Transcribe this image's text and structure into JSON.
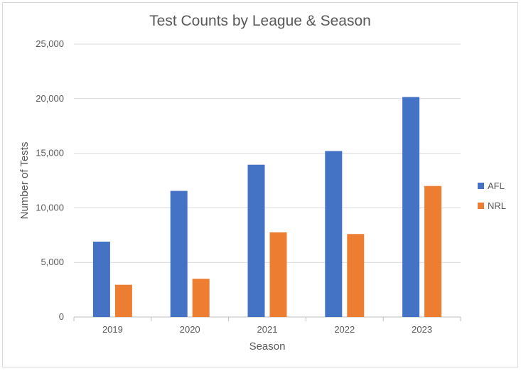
{
  "chart_data": {
    "type": "bar",
    "title": "Test Counts by League & Season",
    "xlabel": "Season",
    "ylabel": "Number of Tests",
    "categories": [
      "2019",
      "2020",
      "2021",
      "2022",
      "2023"
    ],
    "series": [
      {
        "name": "AFL",
        "color": "#4472c4",
        "values": [
          6900,
          11550,
          13950,
          15200,
          20150
        ]
      },
      {
        "name": "NRL",
        "color": "#ed7d31",
        "values": [
          2950,
          3500,
          7750,
          7600,
          12000
        ]
      }
    ],
    "ylim": [
      0,
      25000
    ],
    "yticks": [
      0,
      5000,
      10000,
      15000,
      20000,
      25000
    ],
    "ytick_labels": [
      "0",
      "5,000",
      "10,000",
      "15,000",
      "20,000",
      "25,000"
    ],
    "grid": true,
    "legend_position": "right"
  }
}
